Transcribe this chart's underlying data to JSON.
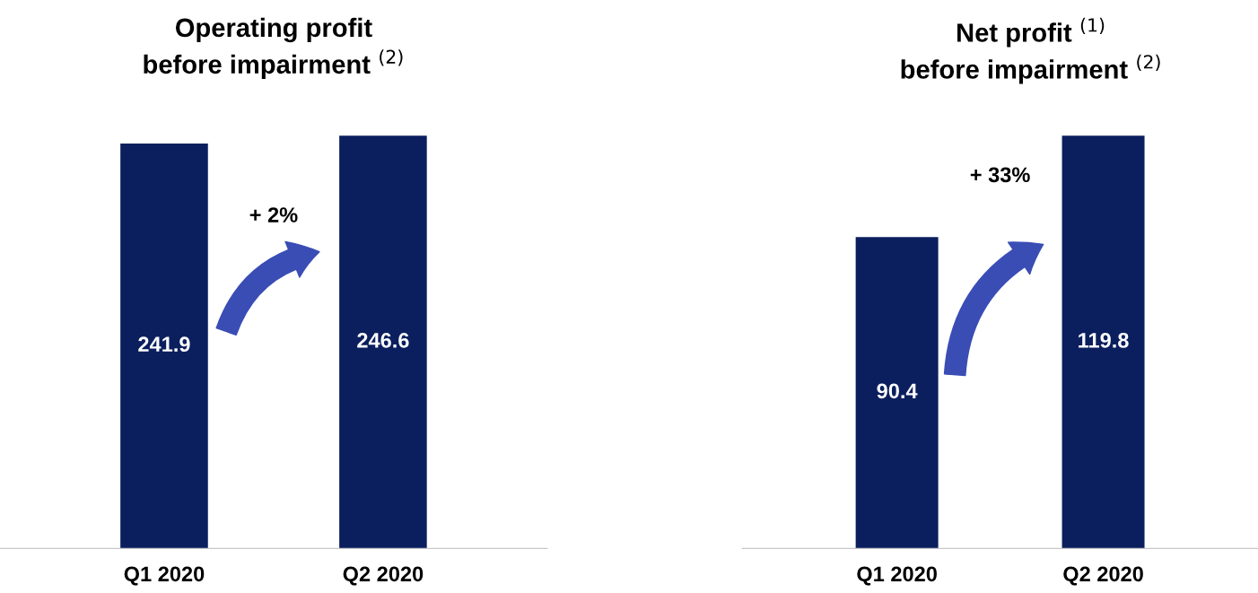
{
  "chart_data": [
    {
      "type": "bar",
      "title": "Operating profit\nbefore impairment $^{(2)}$",
      "categories": [
        "Q1 2020",
        "Q2 2020"
      ],
      "values": [
        241.9,
        246.6
      ],
      "color": "#0b1f5e",
      "data_labels": true,
      "annotations": [
        "+ 2%"
      ]
    },
    {
      "type": "bar",
      "title": "Net profit $^{(1)}$\nbefore impairment $^{(2)}$",
      "categories": [
        "Q1 2020",
        "Q2 2020"
      ],
      "values": [
        90.4,
        119.8
      ],
      "color": "#0b1f5e",
      "data_labels": true,
      "annotations": [
        "+ 33%"
      ]
    }
  ]
}
